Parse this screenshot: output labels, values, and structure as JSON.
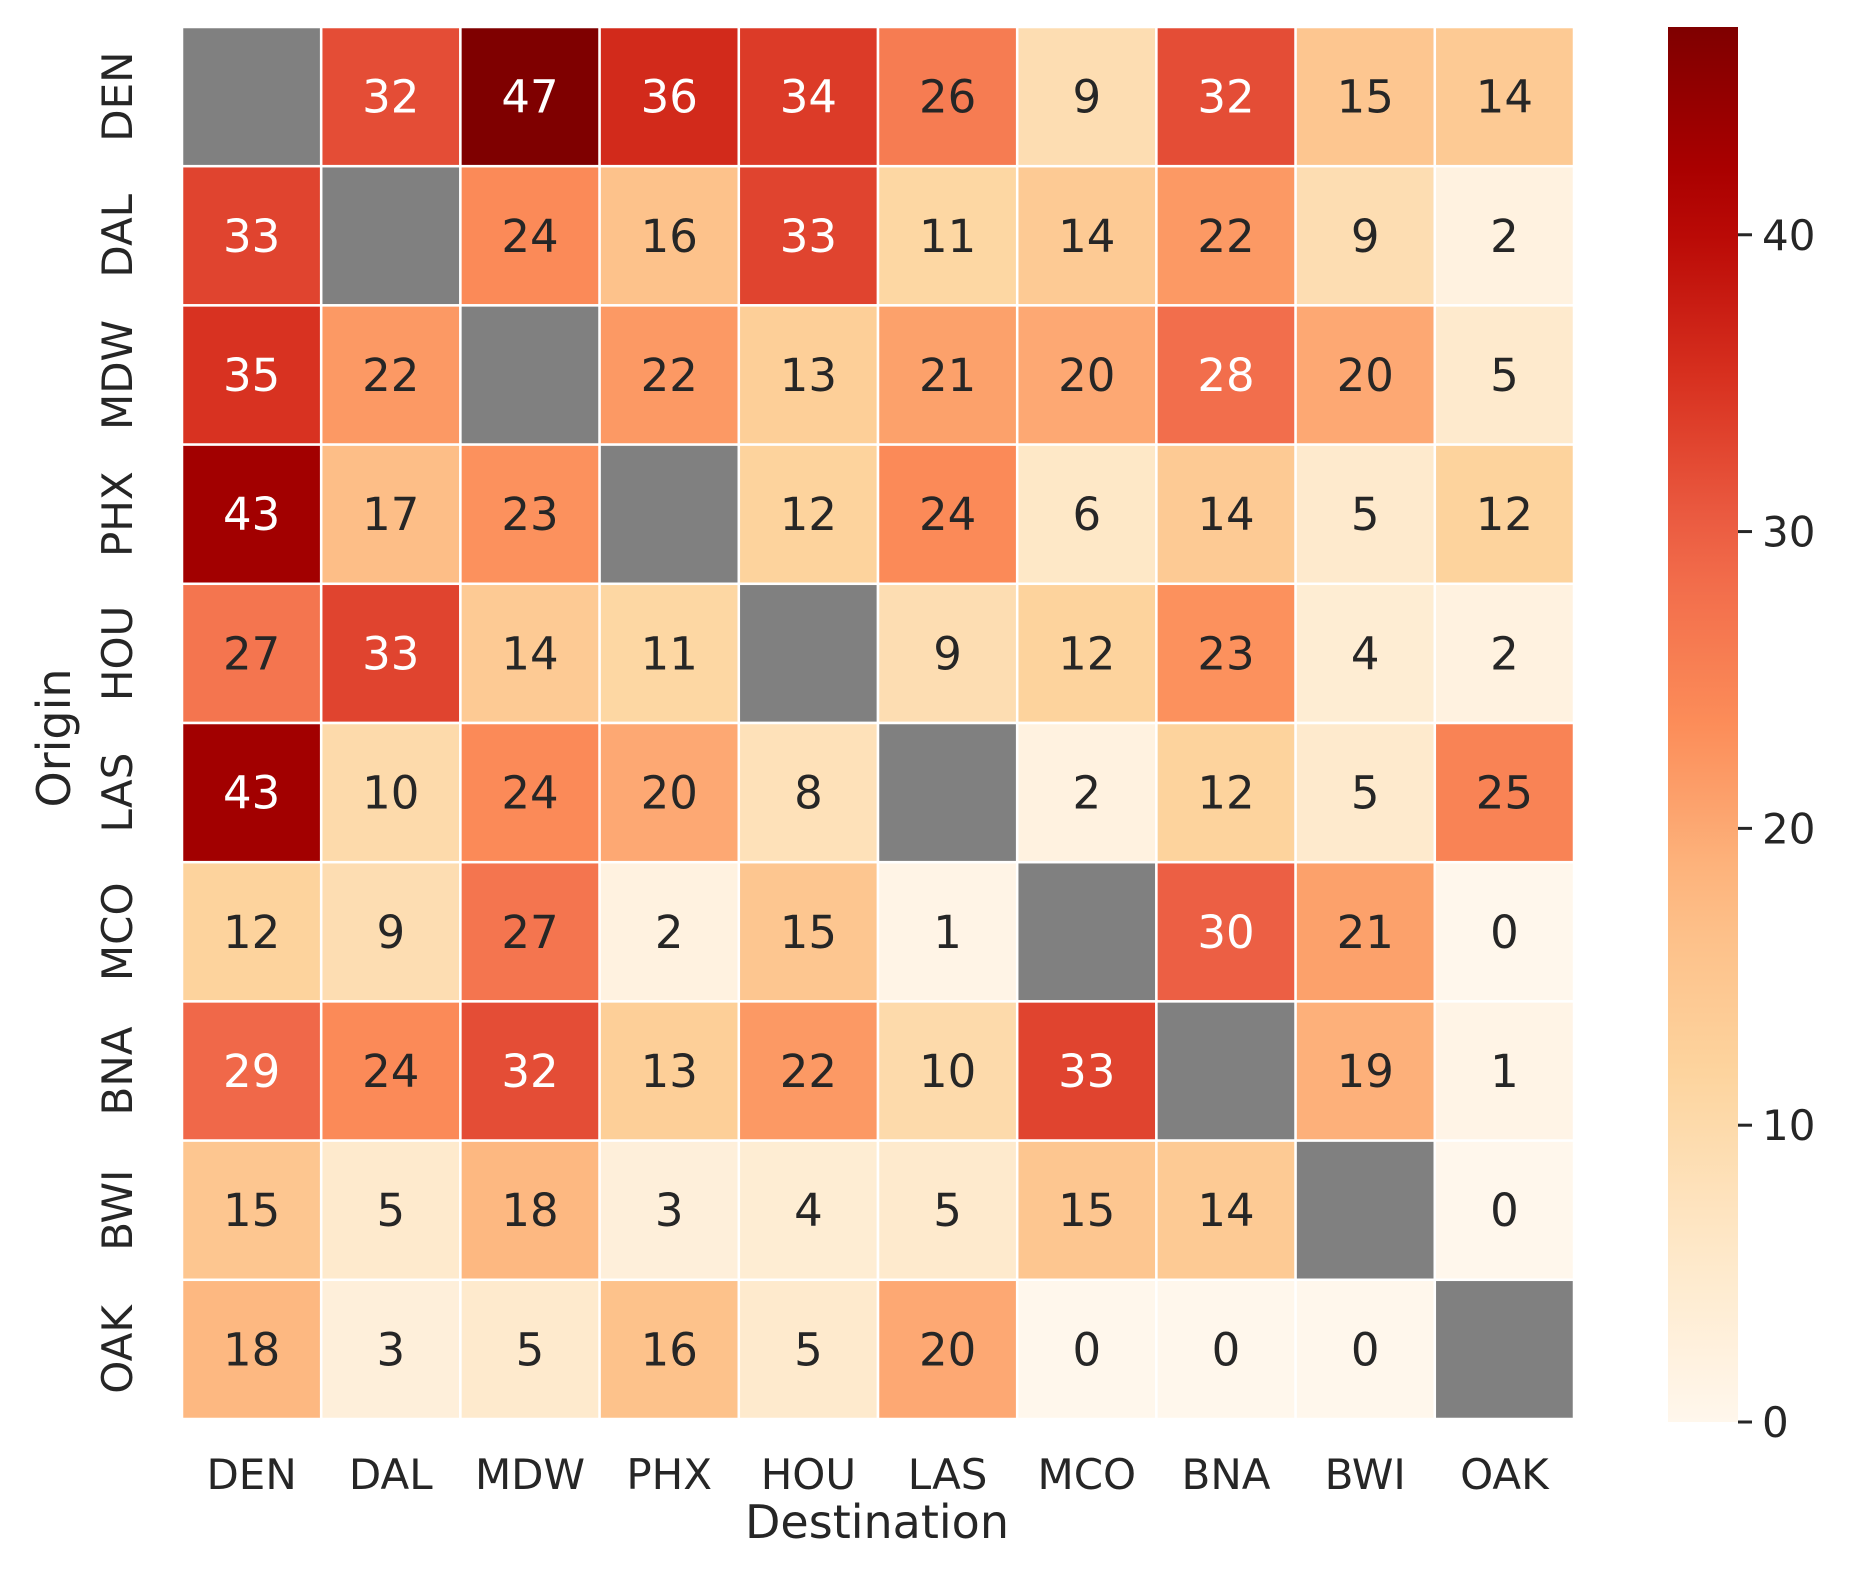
{
  "chart_data": {
    "type": "heatmap",
    "title": "",
    "xlabel": "Destination",
    "ylabel": "Origin",
    "x_categories": [
      "DEN",
      "DAL",
      "MDW",
      "PHX",
      "HOU",
      "LAS",
      "MCO",
      "BNA",
      "BWI",
      "OAK"
    ],
    "y_categories": [
      "DEN",
      "DAL",
      "MDW",
      "PHX",
      "HOU",
      "LAS",
      "MCO",
      "BNA",
      "BWI",
      "OAK"
    ],
    "values": [
      [
        null,
        32,
        47,
        36,
        34,
        26,
        9,
        32,
        15,
        14
      ],
      [
        33,
        null,
        24,
        16,
        33,
        11,
        14,
        22,
        9,
        2
      ],
      [
        35,
        22,
        null,
        22,
        13,
        21,
        20,
        28,
        20,
        5
      ],
      [
        43,
        17,
        23,
        null,
        12,
        24,
        6,
        14,
        5,
        12
      ],
      [
        27,
        33,
        14,
        11,
        null,
        9,
        12,
        23,
        4,
        2
      ],
      [
        43,
        10,
        24,
        20,
        8,
        null,
        2,
        12,
        5,
        25
      ],
      [
        12,
        9,
        27,
        2,
        15,
        1,
        null,
        30,
        21,
        0
      ],
      [
        29,
        24,
        32,
        13,
        22,
        10,
        33,
        null,
        19,
        1
      ],
      [
        15,
        5,
        18,
        3,
        4,
        5,
        15,
        14,
        null,
        0
      ],
      [
        18,
        3,
        5,
        16,
        5,
        20,
        0,
        0,
        0,
        null
      ]
    ],
    "missing_color": "#808080",
    "colormap": "OrRd",
    "colorbar": {
      "min": 0,
      "max": 47,
      "ticks": [
        0,
        10,
        20,
        30,
        40
      ],
      "position": "right"
    },
    "annotations": "cell values shown",
    "grid": false,
    "legend": "none"
  }
}
